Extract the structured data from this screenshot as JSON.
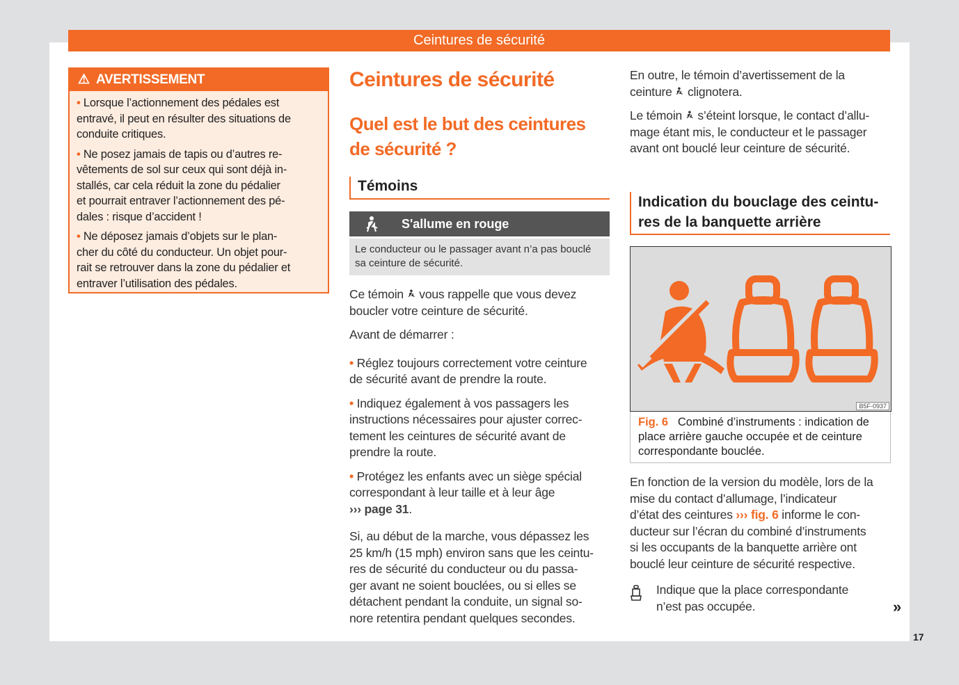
{
  "header": {
    "title": "Ceintures de sécurité"
  },
  "warning": {
    "title": "AVERTISSEMENT",
    "items": [
      [
        "Lorsque l’actionnement des pédales est",
        "entravé, il peut en résulter des situations de",
        "conduite critiques."
      ],
      [
        "Ne posez jamais de tapis ou d’autres re-",
        "vêtements de sol sur ceux qui sont déjà in-",
        "stallés, car cela réduit la zone du pédalier",
        "et pourrait entraver l’actionnement des pé-",
        "dales : risque d’accident !"
      ],
      [
        "Ne déposez jamais d’objets sur le plan-",
        "cher du côté du conducteur. Un objet pour-",
        "rait se retrouver dans la zone du pédalier et",
        "entraver l’utilisation des pédales."
      ]
    ]
  },
  "main": {
    "title": "Ceintures de sécurité",
    "subtitle": [
      "Quel est le but des ceintures",
      "de sécurité ?"
    ],
    "section": "Témoins",
    "lamp": {
      "label": "S'allume en rouge",
      "icon": "seatbelt-icon",
      "description": [
        "Le conducteur ou le passager avant n’a pas bouclé",
        "sa ceinture de sécurité."
      ]
    },
    "p1": [
      "Ce témoin {icon} vous rappelle que vous devez",
      "boucler votre ceinture de sécurité."
    ],
    "p2": [
      "Avant de démarrer :"
    ],
    "bullets": [
      [
        "Réglez toujours correctement votre ceinture",
        "de sécurité avant de prendre la route."
      ],
      [
        "Indiquez également à vos passagers les",
        "instructions nécessaires pour ajuster correc-",
        "tement les ceintures de sécurité avant de",
        "prendre la route."
      ],
      [
        "Protégez les enfants avec un siège spécial",
        "correspondant à leur taille et à leur âge",
        "{link}"
      ]
    ],
    "page_link": "››› page 31",
    "p3": [
      "Si, au début de la marche, vous dépassez les",
      "25 km/h (15 mph) environ sans que les ceintu-",
      "res de sécurité du conducteur ou du passa-",
      "ger avant ne soient bouclées, ou si elles se",
      "détachent pendant la conduite, un signal so-",
      "nore retentira pendant quelques secondes."
    ]
  },
  "right": {
    "p1": [
      "En outre, le témoin d’avertissement de la",
      "ceinture {icon} clignotera."
    ],
    "p2": [
      "Le témoin {icon} s’éteint lorsque, le contact d’allu-",
      "mage étant mis, le conducteur et le passager",
      "avant ont bouclé leur ceinture de sécurité."
    ],
    "section": [
      "Indication du bouclage des ceintu-",
      "res de la banquette arrière"
    ],
    "figure": {
      "code": "B5F-0937",
      "label": "Fig. 6",
      "caption": [
        "Combiné d’instruments : indication de",
        "place arrière gauche occupée et de ceinture",
        "correspondante bouclée."
      ]
    },
    "p3": [
      "En fonction de la version du modèle, lors de la",
      "mise du contact d’allumage, l’indicateur",
      "d’état des ceintures {link} informe le con-",
      "ducteur sur l’écran du combiné d’instruments",
      "si les occupants de la banquette arrière ont",
      "bouclé leur ceinture de sécurité respective."
    ],
    "fig_link": "››› fig. 6",
    "seat_item": [
      "Indique que la place correspondante",
      "n’est pas occupée."
    ]
  },
  "footer": {
    "page_number": "17",
    "continue": "»"
  },
  "colors": {
    "accent": "#f26a25",
    "dark_bar": "#555555"
  }
}
